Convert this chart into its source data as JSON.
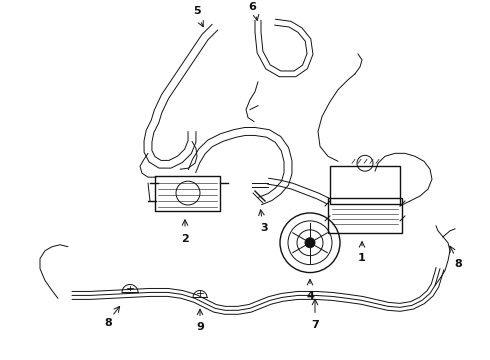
{
  "bg_color": "#ffffff",
  "line_color": "#111111",
  "label_color": "#000000",
  "figsize": [
    4.9,
    3.6
  ],
  "dpi": 100
}
